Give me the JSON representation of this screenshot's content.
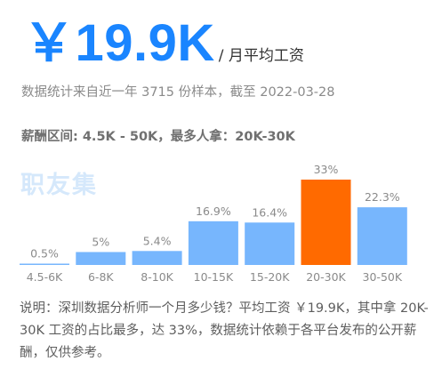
{
  "header": {
    "salary_amount": "￥19.9K",
    "salary_unit": "/ 月平均工资"
  },
  "stats_source": "数据统计来自近一年 3715 份样本，截至 2022-03-28",
  "salary_range": "薪酬区间: 4.5K - 50K，最多人拿：20K-30K",
  "watermark": "职友集",
  "colors": {
    "accent": "#1a85ff",
    "bar": "#77b6fd",
    "bar_highlight": "#ff6a00"
  },
  "chart_data": {
    "type": "bar",
    "categories": [
      "4.5-6K",
      "6-8K",
      "8-10K",
      "10-15K",
      "15-20K",
      "20-30K",
      "30-50K"
    ],
    "values": [
      0.5,
      5,
      5.4,
      16.9,
      16.4,
      33,
      22.3
    ],
    "value_labels": [
      "0.5%",
      "5%",
      "5.4%",
      "16.9%",
      "16.4%",
      "33%",
      "22.3%"
    ],
    "highlight_index": 5,
    "unit": "%",
    "ylim": [
      0,
      33
    ],
    "grid": false,
    "legend": "none",
    "title": "",
    "xlabel": "",
    "ylabel": ""
  },
  "note": "说明：深圳数据分析师一个月多少钱？平均工资 ￥19.9K，其中拿 20K-30K 工资的占比最多，达 33%，数据统计依赖于各平台发布的公开薪酬，仅供参考。"
}
